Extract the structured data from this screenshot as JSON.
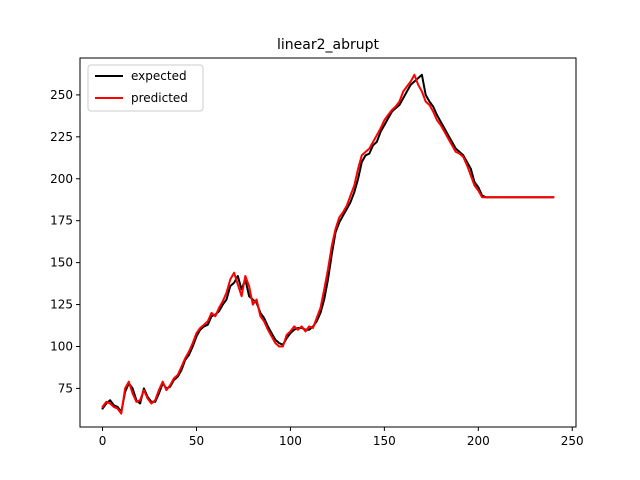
{
  "chart_data": {
    "type": "line",
    "title": "linear2_abrupt",
    "xlabel": "",
    "ylabel": "",
    "xlim": [
      -12,
      252
    ],
    "ylim": [
      52,
      272
    ],
    "xticks": [
      0,
      50,
      100,
      150,
      200,
      250
    ],
    "yticks": [
      75,
      100,
      125,
      150,
      175,
      200,
      225,
      250
    ],
    "grid": false,
    "legend": "top-left",
    "series": [
      {
        "name": "expected",
        "color": "#000000",
        "x": [
          0,
          2,
          4,
          6,
          8,
          10,
          12,
          14,
          16,
          18,
          20,
          22,
          24,
          26,
          28,
          30,
          32,
          34,
          36,
          38,
          40,
          42,
          44,
          46,
          48,
          50,
          52,
          54,
          56,
          58,
          60,
          62,
          64,
          66,
          68,
          70,
          72,
          74,
          76,
          78,
          80,
          82,
          84,
          86,
          88,
          90,
          92,
          94,
          96,
          98,
          100,
          102,
          104,
          106,
          108,
          110,
          112,
          114,
          116,
          118,
          120,
          122,
          124,
          126,
          128,
          130,
          132,
          134,
          136,
          138,
          140,
          142,
          144,
          146,
          148,
          150,
          152,
          154,
          156,
          158,
          160,
          162,
          164,
          166,
          168,
          170,
          172,
          174,
          176,
          178,
          180,
          182,
          184,
          186,
          188,
          190,
          192,
          194,
          196,
          198,
          200,
          202,
          204,
          206,
          208,
          210,
          212,
          214,
          216,
          218,
          220,
          222,
          224,
          226,
          228,
          230,
          232,
          234,
          236,
          238,
          240
        ],
        "values": [
          63,
          66,
          68,
          65,
          64,
          61,
          73,
          78,
          75,
          68,
          66,
          75,
          70,
          67,
          67,
          72,
          78,
          75,
          76,
          80,
          82,
          86,
          92,
          95,
          100,
          106,
          110,
          112,
          113,
          118,
          119,
          121,
          125,
          128,
          136,
          138,
          142,
          134,
          140,
          130,
          128,
          126,
          120,
          117,
          112,
          108,
          104,
          102,
          101,
          105,
          108,
          110,
          111,
          111,
          110,
          110,
          112,
          115,
          120,
          128,
          140,
          155,
          168,
          174,
          178,
          182,
          186,
          192,
          200,
          210,
          214,
          215,
          220,
          222,
          228,
          232,
          236,
          240,
          242,
          244,
          248,
          252,
          256,
          258,
          260,
          262,
          250,
          246,
          243,
          238,
          234,
          230,
          226,
          222,
          218,
          216,
          214,
          210,
          206,
          198,
          195,
          190,
          189,
          189,
          189,
          189,
          189,
          189,
          189,
          189,
          189,
          189,
          189,
          189,
          189,
          189,
          189,
          189,
          189,
          189,
          189
        ]
      },
      {
        "name": "predicted",
        "color": "#ff0000",
        "x": [
          0,
          2,
          4,
          6,
          8,
          10,
          12,
          14,
          16,
          18,
          20,
          22,
          24,
          26,
          28,
          30,
          32,
          34,
          36,
          38,
          40,
          42,
          44,
          46,
          48,
          50,
          52,
          54,
          56,
          58,
          60,
          62,
          64,
          66,
          68,
          70,
          72,
          74,
          76,
          78,
          80,
          82,
          84,
          86,
          88,
          90,
          92,
          94,
          96,
          98,
          100,
          102,
          104,
          106,
          108,
          110,
          112,
          114,
          116,
          118,
          120,
          122,
          124,
          126,
          128,
          130,
          132,
          134,
          136,
          138,
          140,
          142,
          144,
          146,
          148,
          150,
          152,
          154,
          156,
          158,
          160,
          162,
          164,
          166,
          168,
          170,
          172,
          174,
          176,
          178,
          180,
          182,
          184,
          186,
          188,
          190,
          192,
          194,
          196,
          198,
          200,
          202,
          204,
          206,
          208,
          210,
          212,
          214,
          216,
          218,
          220,
          222,
          224,
          226,
          228,
          230,
          232,
          234,
          236,
          238,
          240
        ],
        "values": [
          64,
          67,
          66,
          64,
          63,
          60,
          75,
          79,
          72,
          67,
          68,
          74,
          69,
          66,
          68,
          74,
          79,
          74,
          77,
          81,
          83,
          88,
          93,
          97,
          102,
          108,
          111,
          113,
          115,
          120,
          118,
          123,
          127,
          132,
          140,
          144,
          137,
          130,
          142,
          136,
          125,
          128,
          118,
          115,
          110,
          106,
          102,
          100,
          100,
          107,
          109,
          112,
          110,
          112,
          109,
          112,
          111,
          117,
          123,
          134,
          146,
          160,
          170,
          177,
          180,
          184,
          190,
          196,
          206,
          214,
          216,
          218,
          222,
          226,
          230,
          235,
          238,
          241,
          243,
          246,
          252,
          255,
          258,
          262,
          256,
          252,
          246,
          244,
          240,
          235,
          232,
          228,
          224,
          220,
          216,
          215,
          213,
          208,
          202,
          196,
          193,
          189,
          189,
          189,
          189,
          189,
          189,
          189,
          189,
          189,
          189,
          189,
          189,
          189,
          189,
          189,
          189,
          189,
          189,
          189,
          189
        ]
      }
    ]
  }
}
